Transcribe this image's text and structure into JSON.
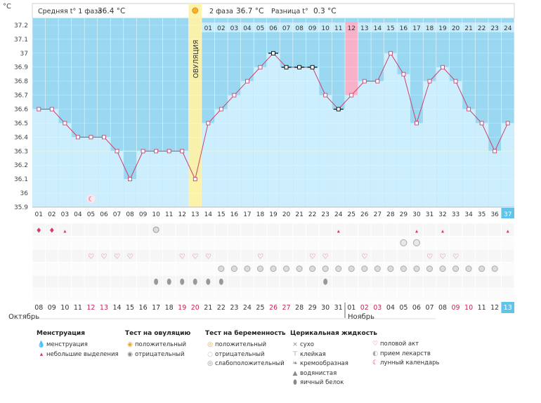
{
  "chart_data": {
    "type": "line",
    "unit_label": "°C",
    "header": {
      "phase1_label": "Средняя t° 1 фаза",
      "phase1_value": "36.4 °C",
      "phase2_label": "2 фаза",
      "phase2_value": "36.7 °C",
      "diff_label": "Разница t°",
      "diff_value": "0.3 °C"
    },
    "ovulation_label": "ОВУЛЯЦИЯ",
    "ovulation_day": 13,
    "highlight_day": 25,
    "coverline": 36.3,
    "ylim": [
      35.9,
      37.25
    ],
    "y_ticks": [
      "37.2",
      "37.1",
      "37",
      "36.9",
      "36.8",
      "36.7",
      "36.6",
      "36.5",
      "36.4",
      "36.3",
      "36.2",
      "36.1",
      "36",
      "35.9"
    ],
    "cycle_days": [
      "01",
      "02",
      "03",
      "04",
      "05",
      "06",
      "07",
      "08",
      "09",
      "10",
      "11",
      "12",
      "13",
      "14",
      "15",
      "16",
      "17",
      "18",
      "19",
      "20",
      "21",
      "22",
      "23",
      "24",
      "25",
      "26",
      "27",
      "28",
      "29",
      "30",
      "31",
      "32",
      "33",
      "34",
      "35",
      "36",
      "37"
    ],
    "phase2_days": [
      "01",
      "02",
      "03",
      "04",
      "05",
      "06",
      "07",
      "08",
      "09",
      "10",
      "11",
      "12",
      "13",
      "14",
      "15",
      "16",
      "17",
      "18",
      "19",
      "20",
      "21",
      "22",
      "23",
      "24"
    ],
    "temperatures": [
      36.6,
      36.6,
      36.5,
      36.4,
      36.4,
      36.4,
      36.3,
      36.1,
      36.3,
      36.3,
      36.3,
      36.3,
      36.1,
      36.5,
      36.6,
      36.7,
      36.8,
      36.9,
      37.0,
      36.9,
      36.9,
      36.9,
      36.7,
      36.6,
      36.7,
      36.8,
      36.8,
      37.0,
      36.85,
      36.5,
      36.8,
      36.9,
      36.8,
      36.6,
      36.5,
      36.3,
      36.5
    ],
    "special_points": [
      19,
      20,
      21,
      22,
      24
    ],
    "dates": [
      "08",
      "09",
      "10",
      "11",
      "12",
      "13",
      "14",
      "15",
      "16",
      "17",
      "18",
      "19",
      "20",
      "21",
      "22",
      "23",
      "24",
      "25",
      "26",
      "27",
      "28",
      "29",
      "30",
      "31",
      "01",
      "02",
      "03",
      "04",
      "05",
      "06",
      "07",
      "08",
      "09",
      "10",
      "11",
      "12",
      "13"
    ],
    "weekend_dates_idx": [
      4,
      5,
      11,
      12,
      18,
      19,
      25,
      26,
      32,
      33
    ],
    "month_october": "Октябрь",
    "month_november": "Ноябрь",
    "rows": {
      "menstruation_heavy": [
        1,
        2
      ],
      "menstruation_light": [
        3,
        24,
        30,
        32,
        37
      ],
      "ovulation_test_negative": [
        10
      ],
      "pregnancy_test": [
        29,
        30
      ],
      "intercourse": [
        5,
        6,
        7,
        8,
        12,
        13,
        14,
        18,
        22,
        23,
        26,
        31,
        32,
        33
      ],
      "medication": [
        15,
        16,
        17,
        18,
        19,
        20,
        21,
        22,
        23,
        24,
        25,
        26,
        27,
        28,
        29,
        30,
        31,
        32,
        33,
        34,
        35,
        36
      ],
      "mucus": [
        10,
        11,
        12,
        13,
        14,
        15,
        23
      ]
    },
    "moon_day": 5,
    "legend": {
      "menstruation_title": "Менструация",
      "menstruation_items": [
        "менструация",
        "небольшие выделения"
      ],
      "ovtest_title": "Тест на овуляцию",
      "ovtest_items": [
        "положительный",
        "отрицательный"
      ],
      "pregtest_title": "Тест на беременность",
      "pregtest_items": [
        "положительный",
        "отрицательный",
        "слабоположительный"
      ],
      "mucus_title": "Церикальная жидкость",
      "mucus_items": [
        "сухо",
        "клейкая",
        "кремообразная",
        "водянистая",
        "яичный белок"
      ],
      "other_items": [
        "половой акт",
        "прием лекарств",
        "лунный календарь"
      ]
    },
    "colors": {
      "area": "#cdeefc",
      "background": "#9ad8f2",
      "line": "#c8426e",
      "ovulation": "#fdf2a8",
      "highlight": "#f8b2c8",
      "accent": "#5fc3ea"
    }
  }
}
